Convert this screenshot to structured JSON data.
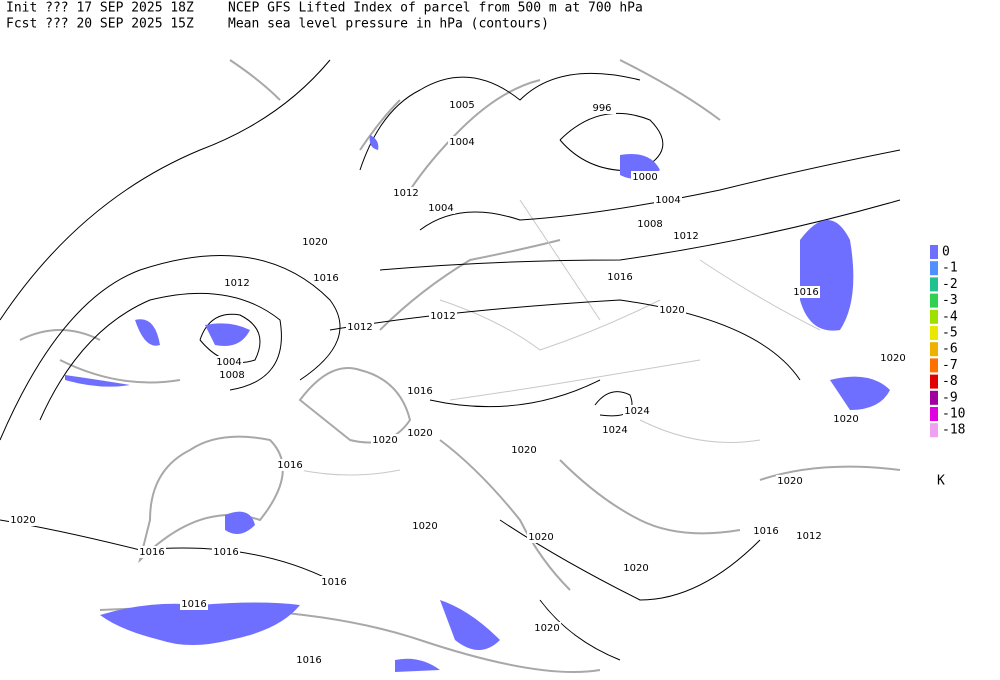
{
  "header": {
    "init": "Init  ??? 17 SEP 2025 18Z",
    "fcst": "Fcst ??? 20 SEP 2025 15Z",
    "title": "NCEP GFS Lifted Index of parcel from 500 m at 700 hPa",
    "subtitle": "Mean sea level pressure in hPa (contours)"
  },
  "contour_labels": [
    1005,
    1004,
    996,
    1000,
    1004,
    1012,
    1004,
    1008,
    1012,
    1020,
    1016,
    1016,
    1012,
    1016,
    1020,
    1012,
    1012,
    1004,
    1008,
    1020,
    1016,
    1024,
    1024,
    1020,
    1020,
    1020,
    1020,
    1016,
    1020,
    1020,
    1020,
    1020,
    1016,
    1012,
    1016,
    1016,
    1020,
    1016,
    1016,
    1020,
    1016
  ],
  "legend": {
    "items": [
      {
        "label": 0,
        "color": "#6f6fff"
      },
      {
        "label": -1,
        "color": "#4f8fff"
      },
      {
        "label": -2,
        "color": "#20c090"
      },
      {
        "label": -3,
        "color": "#30d050"
      },
      {
        "label": -4,
        "color": "#a0e000"
      },
      {
        "label": -5,
        "color": "#e8e800"
      },
      {
        "label": -6,
        "color": "#f0b000"
      },
      {
        "label": -7,
        "color": "#ff7000"
      },
      {
        "label": -8,
        "color": "#e00000"
      },
      {
        "label": -9,
        "color": "#a000a0"
      },
      {
        "label": -10,
        "color": "#e000e0"
      },
      {
        "label": -18,
        "color": "#f0a0f0"
      }
    ],
    "unit": "K"
  }
}
